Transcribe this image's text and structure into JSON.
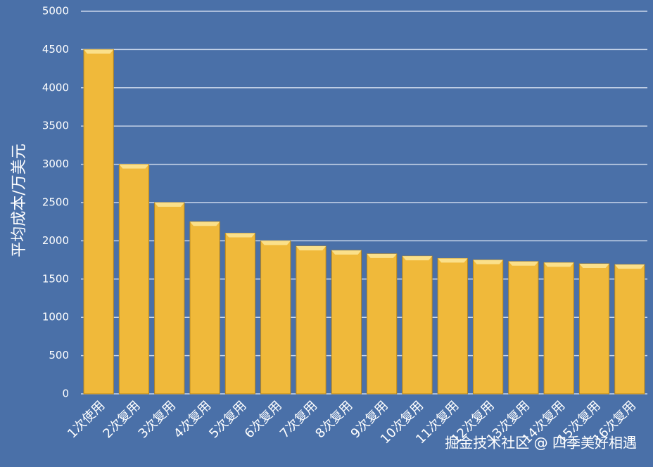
{
  "chart_data": {
    "type": "bar",
    "y_label": "平均成本/万美元",
    "categories": [
      "1次使用",
      "2次复用",
      "3次复用",
      "4次复用",
      "5次复用",
      "6次复用",
      "7次复用",
      "8次复用",
      "9次复用",
      "10次复用",
      "11次复用",
      "12次复用",
      "13次复用",
      "14次复用",
      "15次复用",
      "16次复用"
    ],
    "values": [
      4500,
      3000,
      2500,
      2250,
      2100,
      2000,
      1930,
      1875,
      1830,
      1800,
      1770,
      1750,
      1730,
      1715,
      1700,
      1690
    ],
    "color": "#f0b93a",
    "ylim": [
      0,
      5000
    ],
    "yticks": [
      0,
      500,
      1000,
      1500,
      2000,
      2500,
      3000,
      3500,
      4000,
      4500,
      5000
    ],
    "grid": true,
    "watermark": "掘金技术社区 @ 四季美好相遇"
  }
}
